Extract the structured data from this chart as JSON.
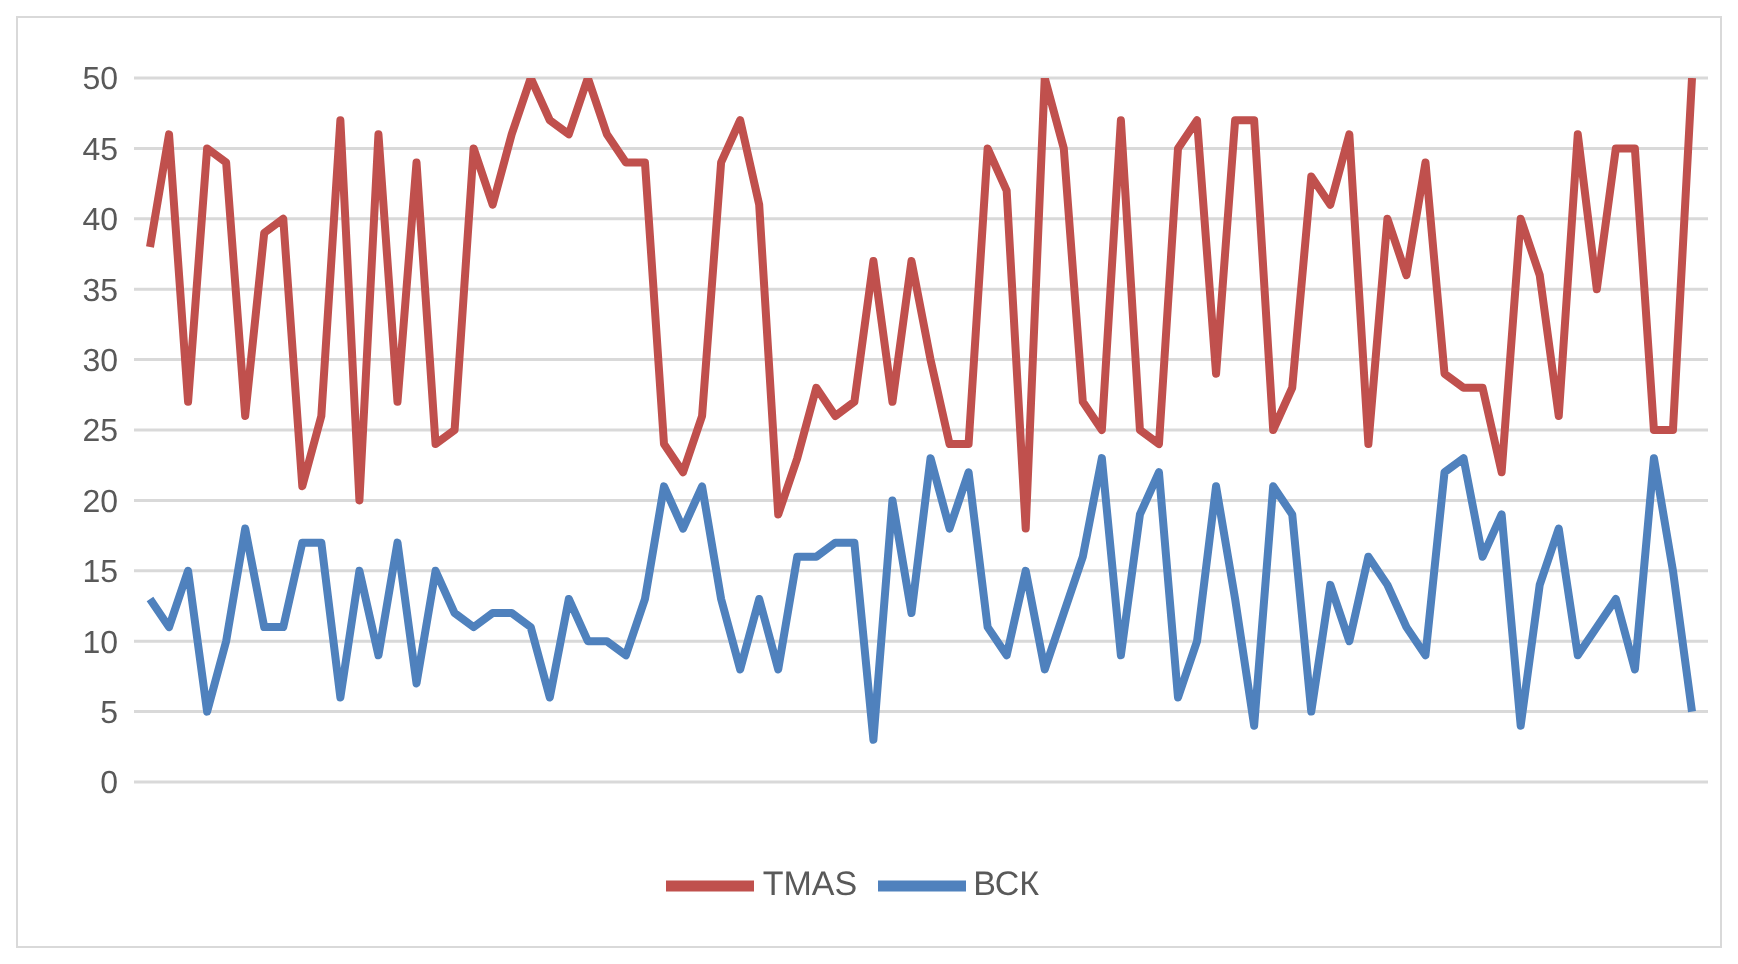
{
  "chart_data": {
    "type": "line",
    "categories": [
      null,
      null,
      null,
      null,
      null,
      null,
      null,
      null,
      null,
      null,
      null,
      null,
      null,
      null,
      null,
      null,
      null,
      null,
      null,
      null,
      null,
      null,
      null,
      null,
      null,
      null,
      null,
      null,
      null,
      null,
      null,
      null,
      null,
      null,
      null,
      null,
      null,
      null,
      null,
      null,
      null,
      null,
      null,
      null,
      null,
      null,
      null,
      null,
      null,
      null,
      null,
      null,
      null,
      null,
      null,
      null,
      null,
      null,
      null,
      null,
      null,
      null,
      null,
      null,
      null,
      null,
      null,
      null,
      null,
      null,
      null,
      null,
      null,
      null,
      null,
      null,
      null,
      null,
      null,
      null,
      null,
      null
    ],
    "series": [
      {
        "name": "ВСК",
        "color": "#4f81bd",
        "values": [
          13,
          11,
          15,
          5,
          10,
          18,
          11,
          11,
          17,
          17,
          6,
          15,
          9,
          17,
          7,
          15,
          12,
          11,
          12,
          12,
          11,
          6,
          13,
          10,
          10,
          9,
          13,
          21,
          18,
          21,
          13,
          8,
          13,
          8,
          16,
          16,
          17,
          17,
          3,
          20,
          12,
          23,
          18,
          22,
          11,
          9,
          15,
          8,
          12,
          16,
          23,
          9,
          19,
          22,
          6,
          10,
          21,
          13,
          4,
          21,
          19,
          5,
          14,
          10,
          16,
          14,
          11,
          9,
          22,
          23,
          16,
          19,
          4,
          14,
          18,
          9,
          11,
          13,
          8,
          23,
          15,
          5
        ]
      },
      {
        "name": "TMAS",
        "color": "#c0504d",
        "values": [
          38,
          46,
          27,
          45,
          44,
          26,
          39,
          40,
          21,
          26,
          47,
          20,
          46,
          27,
          44,
          24,
          25,
          45,
          41,
          46,
          50,
          47,
          46,
          50,
          46,
          44,
          44,
          24,
          22,
          26,
          44,
          47,
          41,
          19,
          23,
          28,
          26,
          27,
          37,
          27,
          37,
          30,
          24,
          24,
          45,
          42,
          18,
          50,
          45,
          27,
          25,
          47,
          25,
          24,
          45,
          47,
          29,
          47,
          47,
          25,
          28,
          43,
          41,
          46,
          24,
          40,
          36,
          44,
          29,
          28,
          28,
          22,
          40,
          36,
          26,
          46,
          35,
          45,
          45,
          25,
          25,
          50
        ]
      }
    ],
    "ylim": [
      0,
      50
    ],
    "yticks": [
      0,
      5,
      10,
      15,
      20,
      25,
      30,
      35,
      40,
      45,
      50
    ],
    "grid": "y",
    "legend": "bottom",
    "marker": "none",
    "line_style": "solid"
  }
}
